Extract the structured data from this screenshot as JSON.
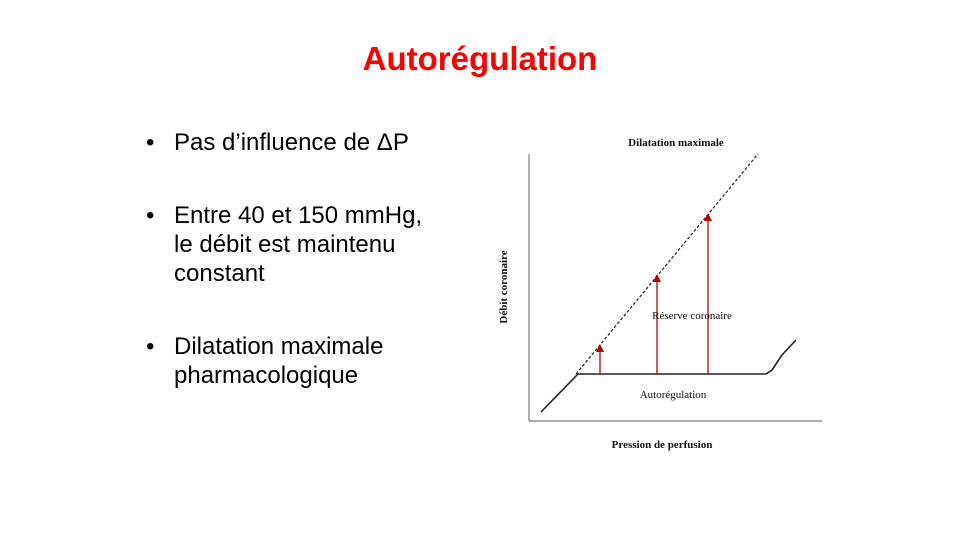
{
  "slide": {
    "title": "Autorégulation",
    "bullets": [
      {
        "line1": "Pas d’influence de ΔP",
        "line2": "",
        "line3": ""
      },
      {
        "line1": "Entre 40 et 150 mmHg,",
        "line2": "le débit est maintenu",
        "line3": "constant"
      },
      {
        "line1": "Dilatation maximale",
        "line2": "pharmacologique",
        "line3": ""
      }
    ],
    "bullet_glyph": "•"
  },
  "diagram": {
    "top_label": "Dilatation maximale",
    "y_axis_label": "Débit coronaire",
    "x_axis_label": "Pression de perfusion",
    "reserve_label": "Réserve coronaire",
    "autoregulation_label": "Autorégulation",
    "arrow_color": "#c00000"
  }
}
